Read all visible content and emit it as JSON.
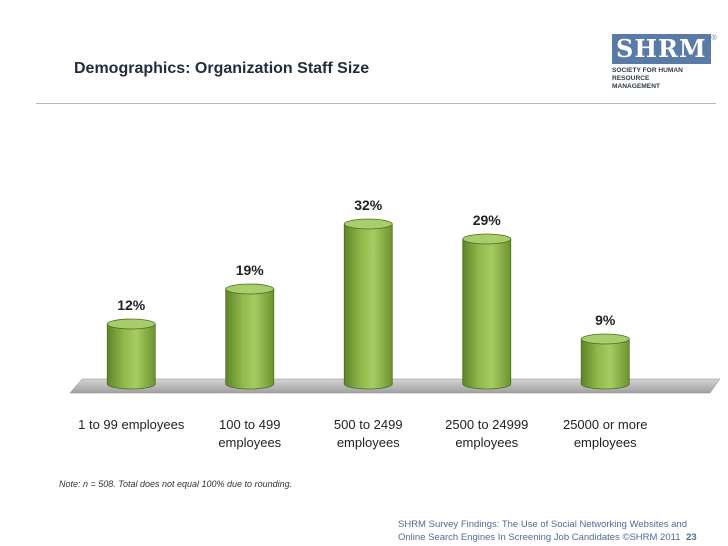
{
  "title": "Demographics: Organization Staff Size",
  "logo": {
    "letters": "SHRM",
    "registered": "®",
    "line1": "SOCIETY FOR HUMAN",
    "line2": "RESOURCE MANAGEMENT"
  },
  "chart_data": {
    "type": "bar",
    "style": "3d-cylinder",
    "title": "",
    "xlabel": "",
    "ylabel": "",
    "categories": [
      [
        "1 to 99 employees"
      ],
      [
        "100 to 499",
        "employees"
      ],
      [
        "500 to 2499",
        "employees"
      ],
      [
        "2500 to 24999",
        "employees"
      ],
      [
        "25000 or more",
        "employees"
      ]
    ],
    "values": [
      12,
      19,
      32,
      29,
      9
    ],
    "data_labels": [
      "12%",
      "19%",
      "32%",
      "29%",
      "9%"
    ],
    "ylim": [
      0,
      35
    ],
    "grid": false,
    "legend": "none",
    "colors": {
      "bar_fill": "#8fba4c",
      "bar_top": "#a9cc6c",
      "bar_edge": "#4d6b1f",
      "floor": "#a0a0a0",
      "label_text": "#222222"
    }
  },
  "note": "Note: n = 508. Total does not equal 100% due to rounding.",
  "footer": {
    "line1": "SHRM Survey Findings: The Use of Social Networking Websites and",
    "line2": "Online Search Engines In Screening Job Candidates ©SHRM 2011",
    "page": "23"
  }
}
